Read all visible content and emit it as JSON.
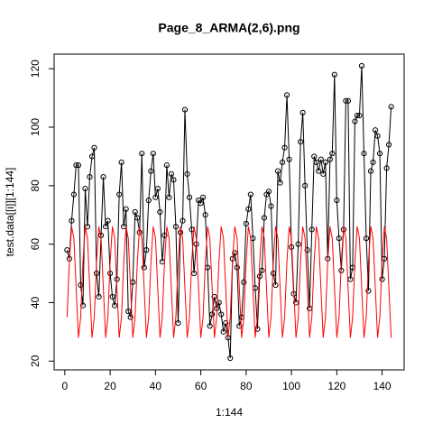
{
  "chart_data": {
    "type": "line",
    "title": "Page_8_ARMA(2,6).png",
    "x_label": "1:144",
    "y_label": "test.data[[i]][1:144]",
    "x": [
      1,
      2,
      3,
      4,
      5,
      6,
      7,
      8,
      9,
      10,
      11,
      12,
      13,
      14,
      15,
      16,
      17,
      18,
      19,
      20,
      21,
      22,
      23,
      24,
      25,
      26,
      27,
      28,
      29,
      30,
      31,
      32,
      33,
      34,
      35,
      36,
      37,
      38,
      39,
      40,
      41,
      42,
      43,
      44,
      45,
      46,
      47,
      48,
      49,
      50,
      51,
      52,
      53,
      54,
      55,
      56,
      57,
      58,
      59,
      60,
      61,
      62,
      63,
      64,
      65,
      66,
      67,
      68,
      69,
      70,
      71,
      72,
      73,
      74,
      75,
      76,
      77,
      78,
      79,
      80,
      81,
      82,
      83,
      84,
      85,
      86,
      87,
      88,
      89,
      90,
      91,
      92,
      93,
      94,
      95,
      96,
      97,
      98,
      99,
      100,
      101,
      102,
      103,
      104,
      105,
      106,
      107,
      108,
      109,
      110,
      111,
      112,
      113,
      114,
      115,
      116,
      117,
      118,
      119,
      120,
      121,
      122,
      123,
      124,
      125,
      126,
      127,
      128,
      129,
      130,
      131,
      132,
      133,
      134,
      135,
      136,
      137,
      138,
      139,
      140,
      141,
      142,
      143,
      144
    ],
    "series": [
      {
        "color": "#000000",
        "marker": true,
        "values": [
          58,
          55,
          68,
          77,
          87,
          87,
          46,
          39,
          79,
          66,
          83,
          90,
          93,
          50,
          42,
          63,
          83,
          66,
          68,
          50,
          42,
          39,
          48,
          77,
          88,
          66,
          72,
          37,
          35,
          47,
          71,
          69,
          64,
          91,
          52,
          58,
          75,
          85,
          91,
          76,
          79,
          71,
          54,
          63,
          87,
          76,
          84,
          82,
          66,
          33,
          64,
          68,
          106,
          84,
          76,
          65,
          50,
          60,
          75,
          74,
          76,
          70,
          52,
          32,
          36,
          42,
          38,
          40,
          36,
          30,
          33,
          28,
          21,
          55,
          57,
          52,
          32,
          35,
          47,
          67,
          72,
          77,
          62,
          45,
          31,
          49,
          51,
          69,
          77,
          78,
          73,
          50,
          46,
          85,
          81,
          88,
          93,
          111,
          89,
          59,
          43,
          40,
          60,
          95,
          105,
          80,
          58,
          38,
          65,
          90,
          88,
          85,
          89,
          84,
          88,
          55,
          89,
          91,
          118,
          75,
          62,
          51,
          65,
          109,
          109,
          48,
          52,
          102,
          104,
          104,
          121,
          91,
          62,
          44,
          85,
          88,
          99,
          97,
          91,
          48,
          55,
          86,
          94,
          107
        ]
      },
      {
        "color": "#ff0000",
        "marker": false,
        "values": [
          35,
          54,
          66,
          62,
          45,
          28,
          35,
          54,
          66,
          62,
          45,
          28,
          35,
          54,
          66,
          62,
          45,
          28,
          35,
          54,
          66,
          62,
          45,
          28,
          35,
          54,
          66,
          62,
          45,
          28,
          35,
          54,
          66,
          62,
          45,
          28,
          35,
          54,
          66,
          62,
          45,
          28,
          35,
          54,
          66,
          62,
          45,
          28,
          35,
          54,
          66,
          62,
          45,
          28,
          35,
          54,
          66,
          62,
          45,
          28,
          35,
          54,
          66,
          62,
          45,
          28,
          35,
          54,
          66,
          62,
          45,
          28,
          35,
          54,
          66,
          62,
          45,
          28,
          35,
          54,
          66,
          62,
          45,
          28,
          35,
          54,
          66,
          62,
          45,
          28,
          35,
          54,
          66,
          62,
          45,
          28,
          35,
          54,
          66,
          62,
          45,
          28,
          35,
          54,
          66,
          62,
          45,
          28,
          35,
          54,
          66,
          62,
          45,
          28,
          35,
          54,
          66,
          62,
          45,
          28,
          35,
          54,
          66,
          62,
          45,
          28,
          35,
          54,
          66,
          62,
          45,
          28,
          35,
          54,
          66,
          62,
          45,
          28,
          35,
          54,
          66,
          62,
          45,
          28
        ]
      }
    ],
    "xlim": [
      -4.72,
      149.72
    ],
    "xticks": [
      0,
      20,
      40,
      60,
      80,
      100,
      120,
      140
    ],
    "ylim": [
      17,
      125
    ],
    "yticks": [
      20,
      40,
      60,
      80,
      100,
      120
    ]
  }
}
